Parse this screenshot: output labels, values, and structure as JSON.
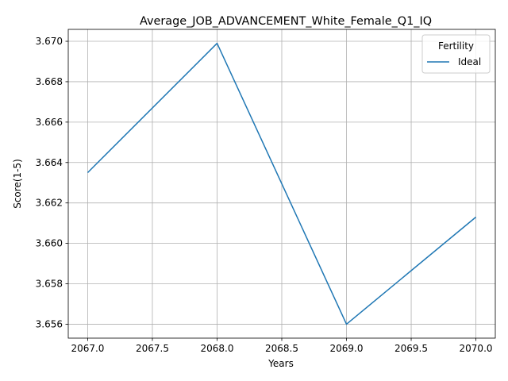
{
  "chart_data": {
    "type": "line",
    "title": "Average_JOB_ADVANCEMENT_White_Female_Q1_IQ",
    "xlabel": "Years",
    "ylabel": "Score(1-5)",
    "x": [
      2067,
      2068,
      2069,
      2070
    ],
    "series": [
      {
        "name": "Ideal",
        "values": [
          3.6635,
          3.6699,
          3.656,
          3.6613
        ],
        "color": "#1f77b4"
      }
    ],
    "xlim": [
      2066.85,
      2070.15
    ],
    "ylim": [
      3.65531,
      3.67059
    ],
    "xticks": [
      "2067.0",
      "2067.5",
      "2068.0",
      "2068.5",
      "2069.0",
      "2069.5",
      "2070.0"
    ],
    "yticks": [
      "3.656",
      "3.658",
      "3.660",
      "3.662",
      "3.664",
      "3.666",
      "3.668",
      "3.670"
    ],
    "grid": true,
    "legend": {
      "title": "Fertility",
      "position": "top-right"
    }
  }
}
